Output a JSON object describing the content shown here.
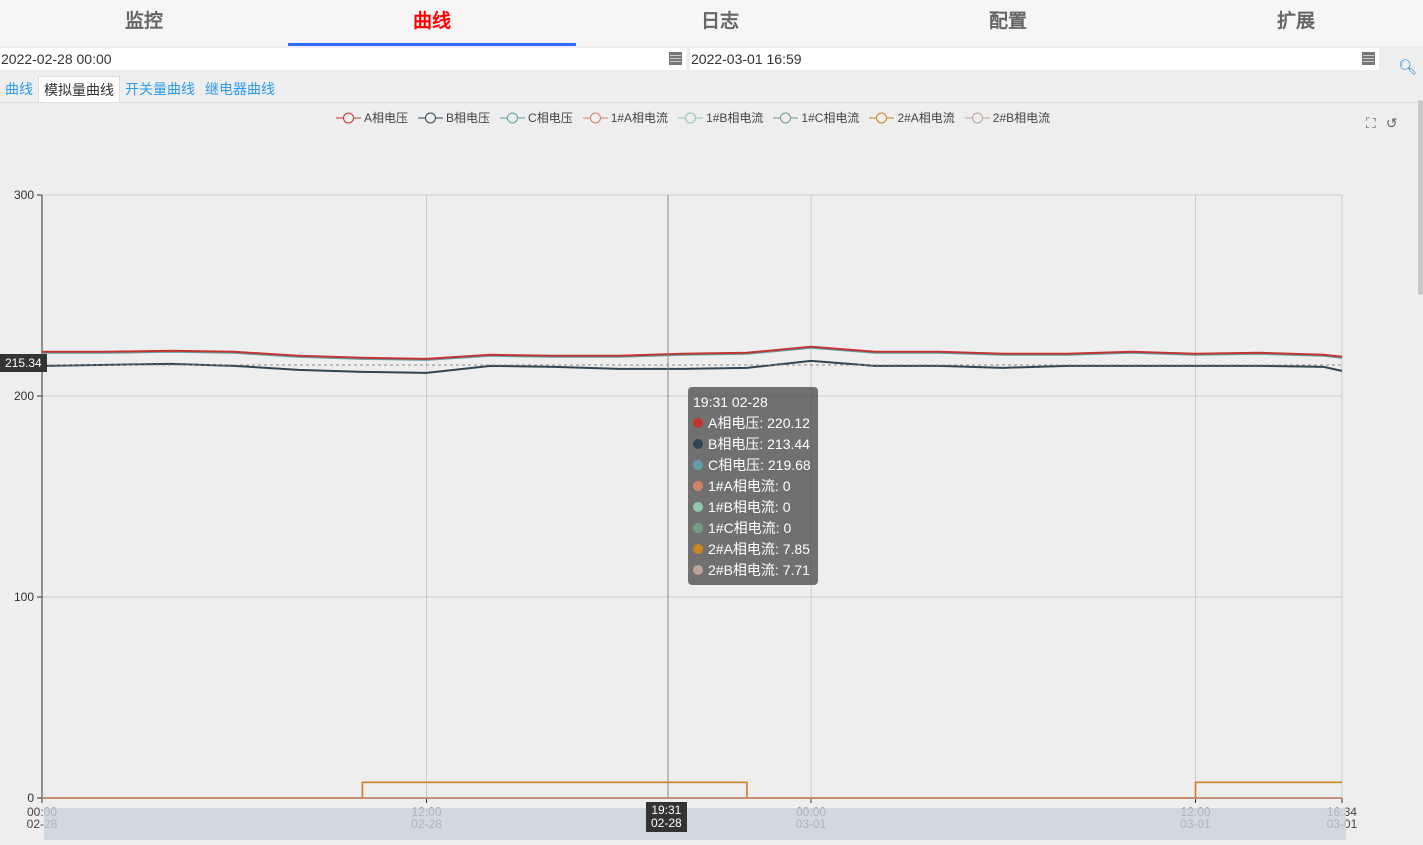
{
  "nav": [
    "监控",
    "曲线",
    "日志",
    "配置",
    "扩展"
  ],
  "nav_active": 1,
  "start_date": "2022-02-28 00:00",
  "end_date": "2022-03-01 16:59",
  "subtabs": [
    "曲线",
    "模拟量曲线",
    "开关量曲线",
    "继电器曲线"
  ],
  "subtab_active": 1,
  "tooltip": {
    "title": "19:31 02-28",
    "rows": [
      {
        "label": "A相电压: 220.12",
        "color": "#c23531"
      },
      {
        "label": "B相电压: 213.44",
        "color": "#2f4554"
      },
      {
        "label": "C相电压: 219.68",
        "color": "#61a0a8"
      },
      {
        "label": "1#A相电流: 0",
        "color": "#d48265"
      },
      {
        "label": "1#B相电流: 0",
        "color": "#91c7ae"
      },
      {
        "label": "1#C相电流: 0",
        "color": "#749f83"
      },
      {
        "label": "2#A相电流: 7.85",
        "color": "#ca8622"
      },
      {
        "label": "2#B相电流: 7.71",
        "color": "#bda29a"
      }
    ]
  },
  "axis_pointer": {
    "y": "215.34",
    "x": [
      "19:31",
      "02-28"
    ]
  },
  "chart_data": {
    "type": "line",
    "ylim": [
      0,
      300
    ],
    "yticks": [
      "0",
      "100",
      "200",
      "300"
    ],
    "xticks": [
      [
        "00:00",
        "02-28"
      ],
      [
        "12:00",
        "02-28"
      ],
      [
        "00:00",
        "03-01"
      ],
      [
        "12:00",
        "03-01"
      ],
      [
        "16:34",
        "03-01"
      ]
    ],
    "x_hours": [
      0,
      2,
      4,
      6,
      8,
      10,
      12,
      14,
      16,
      18,
      20,
      22,
      24,
      26,
      28,
      30,
      32,
      34,
      36,
      38,
      40,
      40.57
    ],
    "legend_position": "top",
    "grid": true,
    "series": [
      {
        "name": "A相电压",
        "color": "#c23531",
        "values": [
          222,
          222,
          222.5,
          222,
          220,
          219,
          218.5,
          220.5,
          220,
          220,
          221,
          221.5,
          224.5,
          222,
          222,
          221,
          221,
          222,
          221,
          221.5,
          220.5,
          219.5
        ]
      },
      {
        "name": "B相电压",
        "color": "#2f4554",
        "values": [
          215,
          215.5,
          216,
          215,
          213,
          212,
          211.5,
          215,
          214.5,
          213.5,
          213.5,
          214,
          217.5,
          215,
          215,
          214,
          215,
          215,
          215,
          215,
          214.5,
          212.5
        ]
      },
      {
        "name": "C相电压",
        "color": "#61a0a8",
        "values": [
          221.5,
          221.5,
          222,
          221.5,
          219.5,
          218.5,
          218,
          220,
          219.5,
          219.5,
          220.5,
          221,
          224,
          221.5,
          221.5,
          220.5,
          220.5,
          221.5,
          220.5,
          221,
          220,
          219
        ]
      },
      {
        "name": "1#A相电流",
        "color": "#d48265",
        "values": [
          0,
          0,
          0,
          0,
          0,
          0,
          0,
          0,
          0,
          0,
          0,
          0,
          0,
          0,
          0,
          0,
          0,
          0,
          0,
          0,
          0,
          0
        ]
      },
      {
        "name": "1#B相电流",
        "color": "#91c7ae",
        "values": [
          0,
          0,
          0,
          0,
          0,
          0,
          0,
          0,
          0,
          0,
          0,
          0,
          0,
          0,
          0,
          0,
          0,
          0,
          0,
          0,
          0,
          0
        ]
      },
      {
        "name": "1#C相电流",
        "color": "#749f83",
        "values": [
          0,
          0,
          0,
          0,
          0,
          0,
          0,
          0,
          0,
          0,
          0,
          0,
          0,
          0,
          0,
          0,
          0,
          0,
          0,
          0,
          0,
          0
        ]
      },
      {
        "name": "2#A相电流",
        "color": "#ca8622",
        "values": [
          0,
          0,
          0,
          0,
          0,
          7.85,
          7.85,
          7.85,
          7.85,
          7.85,
          7.85,
          0,
          0,
          0,
          0,
          0,
          0,
          0,
          7.85,
          7.85,
          7.85,
          7.85
        ]
      },
      {
        "name": "2#B相电流",
        "color": "#bda29a",
        "values": [
          0,
          0,
          0,
          0,
          0,
          7.71,
          7.71,
          7.71,
          7.71,
          7.71,
          7.71,
          0,
          0,
          0,
          0,
          0,
          0,
          0,
          7.71,
          7.71,
          7.71,
          7.71
        ]
      }
    ]
  }
}
